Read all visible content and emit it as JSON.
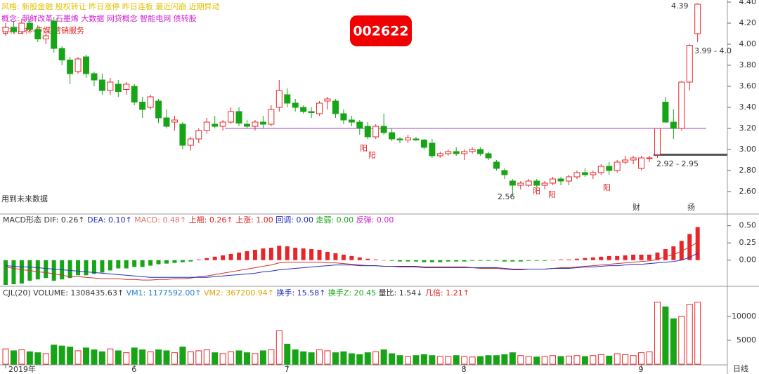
{
  "chart_data": [
    {
      "type": "candlestick",
      "info": [
        {
          "text": "风格:  新股金融 股权转让 昨日涨停 昨日连板 最近闪崩 近期异动",
          "color": "#e0c000"
        },
        {
          "text": "概念:  朝鲜改革 石墨烯 大数据 网贷概念 智能电网 债转股",
          "color": "#d020d0"
        },
        {
          "text": "吉林吉林-传媒-营销服务",
          "color": "#e02020"
        }
      ],
      "code": "002622",
      "up_color": "#e8262a",
      "down_color": "#17a517",
      "ylim": [
        2.42,
        4.42
      ],
      "yticks": [
        {
          "value": 4.4,
          "label": "4.40"
        },
        {
          "value": 4.2,
          "label": "4.20"
        },
        {
          "value": 4.0,
          "label": "4.00"
        },
        {
          "value": 3.8,
          "label": "3.80"
        },
        {
          "value": 3.6,
          "label": "3.60"
        },
        {
          "value": 3.4,
          "label": "3.40"
        },
        {
          "value": 3.2,
          "label": "3.20"
        },
        {
          "value": 3.0,
          "label": "3.00"
        },
        {
          "value": 2.8,
          "label": "2.80"
        },
        {
          "value": 2.6,
          "label": "2.60"
        }
      ],
      "xticks": [
        {
          "value": 0,
          "label": "2019年"
        },
        {
          "value": 16,
          "label": "6"
        },
        {
          "value": 35,
          "label": "7"
        },
        {
          "value": 57,
          "label": "8"
        },
        {
          "value": 79,
          "label": "9"
        }
      ],
      "period": "日线",
      "levels": [
        {
          "value": 3.2,
          "color": "#a040d0"
        },
        {
          "value": 2.95,
          "color": "#555555"
        }
      ],
      "annotations": [
        {
          "text": "4.39"
        },
        {
          "text": "3.99 - 4.0"
        },
        {
          "text": "2.92 - 2.95"
        },
        {
          "text": "2.56"
        },
        {
          "text": "阳"
        },
        {
          "text": "阳"
        },
        {
          "text": "阳"
        },
        {
          "text": "阳"
        },
        {
          "text": "阳"
        },
        {
          "text": "用到未来数据"
        },
        {
          "text": "财"
        },
        {
          "text": "扬"
        }
      ],
      "ohlc": [
        [
          4.12,
          4.2,
          4.08,
          4.16
        ],
        [
          4.16,
          4.22,
          4.1,
          4.12
        ],
        [
          4.12,
          4.24,
          4.1,
          4.2
        ],
        [
          4.2,
          4.24,
          4.12,
          4.14
        ],
        [
          4.14,
          4.18,
          4.02,
          4.05
        ],
        [
          4.05,
          4.1,
          4.0,
          4.08
        ],
        [
          4.22,
          4.26,
          3.92,
          3.96
        ],
        [
          3.96,
          3.98,
          3.8,
          3.85
        ],
        [
          3.85,
          3.88,
          3.62,
          3.72
        ],
        [
          3.74,
          3.88,
          3.72,
          3.86
        ],
        [
          3.88,
          3.9,
          3.68,
          3.72
        ],
        [
          3.72,
          3.74,
          3.6,
          3.66
        ],
        [
          3.66,
          3.72,
          3.52,
          3.56
        ],
        [
          3.56,
          3.68,
          3.52,
          3.64
        ],
        [
          3.62,
          3.66,
          3.5,
          3.55
        ],
        [
          3.57,
          3.64,
          3.52,
          3.62
        ],
        [
          3.6,
          3.62,
          3.42,
          3.45
        ],
        [
          3.45,
          3.5,
          3.3,
          3.38
        ],
        [
          3.4,
          3.52,
          3.38,
          3.5
        ],
        [
          3.46,
          3.48,
          3.25,
          3.3
        ],
        [
          3.3,
          3.38,
          3.2,
          3.22
        ],
        [
          3.26,
          3.32,
          3.18,
          3.28
        ],
        [
          3.24,
          3.26,
          3.0,
          3.04
        ],
        [
          3.04,
          3.12,
          2.99,
          3.1
        ],
        [
          3.1,
          3.2,
          3.06,
          3.18
        ],
        [
          3.18,
          3.3,
          3.15,
          3.26
        ],
        [
          3.24,
          3.32,
          3.2,
          3.22
        ],
        [
          3.22,
          3.28,
          3.18,
          3.26
        ],
        [
          3.26,
          3.4,
          3.24,
          3.36
        ],
        [
          3.36,
          3.4,
          3.22,
          3.25
        ],
        [
          3.24,
          3.28,
          3.2,
          3.22
        ],
        [
          3.22,
          3.28,
          3.18,
          3.26
        ],
        [
          3.26,
          3.32,
          3.2,
          3.24
        ],
        [
          3.24,
          3.42,
          3.22,
          3.38
        ],
        [
          3.4,
          3.66,
          3.36,
          3.56
        ],
        [
          3.52,
          3.58,
          3.4,
          3.44
        ],
        [
          3.44,
          3.48,
          3.36,
          3.4
        ],
        [
          3.4,
          3.42,
          3.34,
          3.36
        ],
        [
          3.36,
          3.4,
          3.3,
          3.35
        ],
        [
          3.34,
          3.46,
          3.32,
          3.44
        ],
        [
          3.46,
          3.5,
          3.38,
          3.48
        ],
        [
          3.46,
          3.48,
          3.3,
          3.34
        ],
        [
          3.34,
          3.38,
          3.24,
          3.28
        ],
        [
          3.28,
          3.32,
          3.22,
          3.26
        ],
        [
          3.26,
          3.28,
          3.14,
          3.2
        ],
        [
          3.22,
          3.26,
          3.1,
          3.12
        ],
        [
          3.12,
          3.24,
          3.1,
          3.22
        ],
        [
          3.22,
          3.34,
          3.14,
          3.16
        ],
        [
          3.16,
          3.2,
          3.08,
          3.1
        ],
        [
          3.1,
          3.12,
          3.06,
          3.09
        ],
        [
          3.09,
          3.14,
          3.06,
          3.11
        ],
        [
          3.1,
          3.12,
          3.08,
          3.09
        ],
        [
          3.09,
          3.1,
          3.0,
          3.02
        ],
        [
          3.06,
          3.1,
          2.92,
          2.94
        ],
        [
          2.94,
          2.98,
          2.92,
          2.96
        ],
        [
          2.96,
          3.0,
          2.94,
          2.98
        ],
        [
          2.98,
          3.02,
          2.94,
          2.96
        ],
        [
          2.96,
          3.0,
          2.9,
          2.98
        ],
        [
          2.98,
          3.02,
          2.96,
          3.0
        ],
        [
          3.0,
          3.02,
          2.94,
          2.96
        ],
        [
          2.96,
          2.98,
          2.9,
          2.92
        ],
        [
          2.88,
          2.9,
          2.8,
          2.82
        ],
        [
          2.8,
          2.82,
          2.72,
          2.76
        ],
        [
          2.7,
          2.72,
          2.56,
          2.66
        ],
        [
          2.66,
          2.7,
          2.62,
          2.68
        ],
        [
          2.66,
          2.72,
          2.64,
          2.7
        ],
        [
          2.7,
          2.72,
          2.64,
          2.66
        ],
        [
          2.66,
          2.7,
          2.62,
          2.68
        ],
        [
          2.68,
          2.74,
          2.66,
          2.72
        ],
        [
          2.72,
          2.74,
          2.66,
          2.7
        ],
        [
          2.7,
          2.76,
          2.66,
          2.74
        ],
        [
          2.74,
          2.8,
          2.72,
          2.78
        ],
        [
          2.78,
          2.82,
          2.74,
          2.76
        ],
        [
          2.76,
          2.8,
          2.72,
          2.78
        ],
        [
          2.78,
          2.86,
          2.76,
          2.84
        ],
        [
          2.84,
          2.88,
          2.76,
          2.8
        ],
        [
          2.8,
          2.9,
          2.78,
          2.88
        ],
        [
          2.88,
          2.94,
          2.86,
          2.9
        ],
        [
          2.9,
          2.94,
          2.86,
          2.92
        ],
        [
          2.82,
          2.94,
          2.8,
          2.92
        ],
        [
          2.92,
          2.94,
          2.88,
          2.92
        ],
        [
          2.95,
          3.2,
          2.92,
          3.2
        ],
        [
          3.45,
          3.5,
          3.25,
          3.26
        ],
        [
          3.26,
          3.38,
          3.1,
          3.2
        ],
        [
          3.2,
          3.65,
          3.18,
          3.64
        ],
        [
          3.64,
          4.0,
          3.56,
          3.99
        ],
        [
          4.1,
          4.39,
          4.02,
          4.38
        ]
      ]
    },
    {
      "type": "macd",
      "header": [
        {
          "text": "MACD形态 ",
          "color": "#333333"
        },
        {
          "text": "DIF: 0.26↑  ",
          "color": "#333333"
        },
        {
          "text": "DEA: 0.10↑  ",
          "color": "#2030c0"
        },
        {
          "text": "MACD: 0.48↑  ",
          "color": "#e07070"
        },
        {
          "text": "上翘: 0.26↑  ",
          "color": "#e02020"
        },
        {
          "text": "上涨: 1.00  ",
          "color": "#e02020"
        },
        {
          "text": "回调: 0.00  ",
          "color": "#2030c0"
        },
        {
          "text": "走弱: 0.00  ",
          "color": "#17a517"
        },
        {
          "text": "反弹: 0.00",
          "color": "#d020d0"
        }
      ],
      "ylim": [
        -0.38,
        0.67
      ],
      "yticks": [
        {
          "value": 0.5,
          "label": "0.50"
        },
        {
          "value": 0.25,
          "label": "0.25"
        },
        {
          "value": 0,
          "label": "0.00"
        }
      ],
      "up_color": "#e8262a",
      "down_color": "#17a517",
      "dif_color": "#d03030",
      "dea_color": "#2030c0",
      "values": [
        -0.36,
        -0.35,
        -0.34,
        -0.3,
        -0.28,
        -0.26,
        -0.3,
        -0.28,
        -0.26,
        -0.22,
        -0.22,
        -0.2,
        -0.18,
        -0.15,
        -0.12,
        -0.12,
        -0.1,
        -0.1,
        -0.08,
        -0.06,
        -0.05,
        -0.04,
        -0.03,
        -0.02,
        0.01,
        0.03,
        0.05,
        0.07,
        0.09,
        0.11,
        0.13,
        0.15,
        0.17,
        0.18,
        0.21,
        0.2,
        0.18,
        0.17,
        0.16,
        0.15,
        0.12,
        0.1,
        0.08,
        0.06,
        0.04,
        0.02,
        0.01,
        0.0,
        -0.01,
        -0.02,
        -0.02,
        -0.02,
        -0.03,
        -0.03,
        -0.03,
        -0.02,
        -0.02,
        -0.02,
        -0.01,
        -0.01,
        -0.01,
        -0.01,
        -0.02,
        -0.02,
        -0.02,
        -0.01,
        -0.01,
        -0.01,
        0.0,
        0.01,
        0.01,
        0.02,
        0.03,
        0.04,
        0.05,
        0.06,
        0.06,
        0.07,
        0.08,
        0.08,
        0.08,
        0.11,
        0.16,
        0.2,
        0.28,
        0.38,
        0.48
      ],
      "dif": [
        -0.1,
        -0.12,
        -0.14,
        -0.15,
        -0.17,
        -0.18,
        -0.2,
        -0.22,
        -0.24,
        -0.24,
        -0.25,
        -0.26,
        -0.27,
        -0.27,
        -0.27,
        -0.28,
        -0.28,
        -0.29,
        -0.29,
        -0.28,
        -0.28,
        -0.27,
        -0.27,
        -0.26,
        -0.24,
        -0.23,
        -0.21,
        -0.19,
        -0.17,
        -0.15,
        -0.13,
        -0.11,
        -0.09,
        -0.07,
        -0.04,
        -0.03,
        -0.03,
        -0.03,
        -0.03,
        -0.03,
        -0.04,
        -0.04,
        -0.05,
        -0.06,
        -0.07,
        -0.08,
        -0.08,
        -0.09,
        -0.09,
        -0.1,
        -0.1,
        -0.1,
        -0.11,
        -0.11,
        -0.11,
        -0.11,
        -0.11,
        -0.11,
        -0.11,
        -0.12,
        -0.12,
        -0.12,
        -0.13,
        -0.14,
        -0.14,
        -0.13,
        -0.13,
        -0.13,
        -0.12,
        -0.11,
        -0.11,
        -0.1,
        -0.09,
        -0.08,
        -0.07,
        -0.06,
        -0.05,
        -0.04,
        -0.03,
        -0.02,
        -0.01,
        0.01,
        0.05,
        0.08,
        0.13,
        0.19,
        0.26
      ],
      "dea": [
        -0.08,
        -0.09,
        -0.1,
        -0.1,
        -0.11,
        -0.12,
        -0.13,
        -0.14,
        -0.15,
        -0.16,
        -0.17,
        -0.18,
        -0.19,
        -0.2,
        -0.21,
        -0.22,
        -0.23,
        -0.24,
        -0.25,
        -0.25,
        -0.25,
        -0.25,
        -0.25,
        -0.25,
        -0.25,
        -0.25,
        -0.24,
        -0.23,
        -0.22,
        -0.21,
        -0.2,
        -0.19,
        -0.17,
        -0.16,
        -0.14,
        -0.13,
        -0.12,
        -0.11,
        -0.1,
        -0.09,
        -0.08,
        -0.07,
        -0.07,
        -0.07,
        -0.08,
        -0.08,
        -0.08,
        -0.09,
        -0.09,
        -0.09,
        -0.09,
        -0.09,
        -0.1,
        -0.1,
        -0.1,
        -0.1,
        -0.1,
        -0.1,
        -0.11,
        -0.11,
        -0.11,
        -0.11,
        -0.12,
        -0.13,
        -0.13,
        -0.13,
        -0.13,
        -0.13,
        -0.12,
        -0.12,
        -0.12,
        -0.11,
        -0.1,
        -0.1,
        -0.09,
        -0.08,
        -0.08,
        -0.07,
        -0.06,
        -0.06,
        -0.05,
        -0.04,
        -0.03,
        -0.02,
        0.0,
        0.04,
        0.1
      ]
    },
    {
      "type": "volume",
      "header": [
        {
          "text": "CJL(20) ",
          "color": "#333333"
        },
        {
          "text": "VOLUME: 1308435.63↑  ",
          "color": "#333333"
        },
        {
          "text": "VM1: 1177592.00↑  ",
          "color": "#2080d0"
        },
        {
          "text": "VM2: 367200.94↑  ",
          "color": "#e0a000"
        },
        {
          "text": "换手: 15.58↑  ",
          "color": "#2030c0"
        },
        {
          "text": "换手Z: 20.45  ",
          "color": "#17a517"
        },
        {
          "text": "量比: 1.54↓  ",
          "color": "#333333"
        },
        {
          "text": "几倍: 1.21↑",
          "color": "#e02020"
        }
      ],
      "ylim": [
        0,
        16300
      ],
      "yticks": [
        10000,
        5000
      ],
      "values": [
        3200,
        2800,
        3000,
        2600,
        2400,
        2200,
        4000,
        3800,
        3600,
        2800,
        3400,
        3000,
        2600,
        3200,
        2800,
        2400,
        3400,
        3000,
        2600,
        3000,
        2800,
        2400,
        3600,
        2600,
        2800,
        3000,
        2400,
        2200,
        2600,
        2800,
        2400,
        2200,
        2800,
        3000,
        7000,
        4200,
        3000,
        2600,
        2400,
        3000,
        2800,
        2400,
        2600,
        2200,
        2000,
        2400,
        2600,
        3000,
        2200,
        1800,
        1600,
        1800,
        2000,
        1800,
        1600,
        1600,
        1800,
        1600,
        1500,
        1600,
        1800,
        1800,
        2000,
        2400,
        1800,
        1600,
        1500,
        1600,
        1800,
        1600,
        1700,
        1800,
        1600,
        1800,
        2000,
        1700,
        2200,
        2000,
        1800,
        2400,
        2600,
        13000,
        12000,
        9500,
        10000,
        12500,
        13000
      ]
    }
  ]
}
